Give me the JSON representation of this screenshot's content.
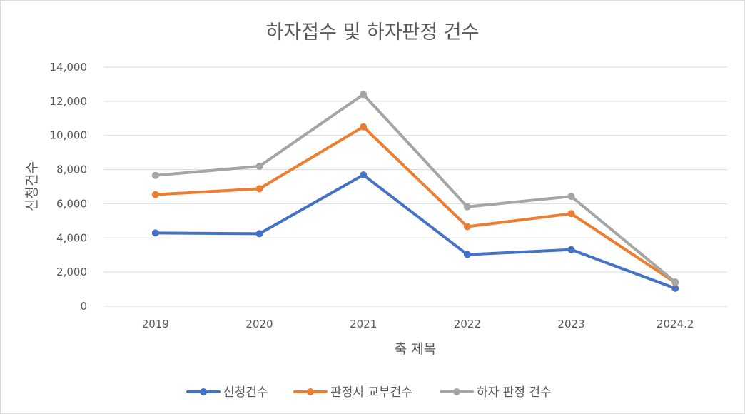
{
  "chart_data": {
    "type": "line",
    "title": "하자접수 및 하자판정 건수",
    "xlabel": "축 제목",
    "ylabel": "신청건수",
    "categories": [
      "2019",
      "2020",
      "2021",
      "2022",
      "2023",
      "2024.2"
    ],
    "ylim": [
      0,
      14000
    ],
    "yticks": [
      0,
      2000,
      4000,
      6000,
      8000,
      10000,
      12000,
      14000
    ],
    "ytick_labels": [
      "0",
      "2,000",
      "4,000",
      "6,000",
      "8,000",
      "10,000",
      "12,000",
      "14,000"
    ],
    "grid": true,
    "legend_position": "bottom",
    "series": [
      {
        "name": "신청건수",
        "color": "#4472c4",
        "values": [
          4290,
          4245,
          7686,
          3027,
          3313,
          1052
        ]
      },
      {
        "name": "판정서 교부건수",
        "color": "#ed7d31",
        "values": [
          6535,
          6880,
          10500,
          4660,
          5420,
          1390
        ]
      },
      {
        "name": "하자 판정 건수",
        "color": "#a5a5a5",
        "values": [
          7660,
          8190,
          12400,
          5820,
          6430,
          1420
        ]
      }
    ]
  }
}
